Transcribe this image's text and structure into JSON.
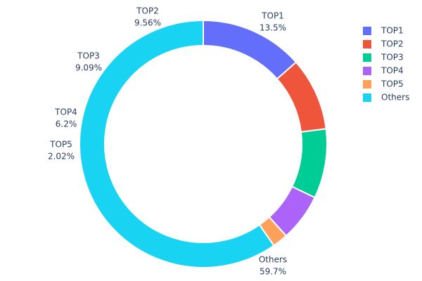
{
  "chart_data": {
    "type": "pie",
    "labels": [
      "TOP1",
      "TOP2",
      "TOP3",
      "TOP4",
      "TOP5",
      "Others"
    ],
    "values": [
      13.5,
      9.56,
      9.09,
      6.2,
      2.02,
      59.7
    ],
    "value_labels": [
      "13.5%",
      "9.56%",
      "9.09%",
      "6.2%",
      "2.02%",
      "59.7%"
    ],
    "colors": [
      "#636efa",
      "#EF553B",
      "#00cc96",
      "#ab63fa",
      "#FFA15A",
      "#19d3f3"
    ],
    "legend": "top-right"
  }
}
